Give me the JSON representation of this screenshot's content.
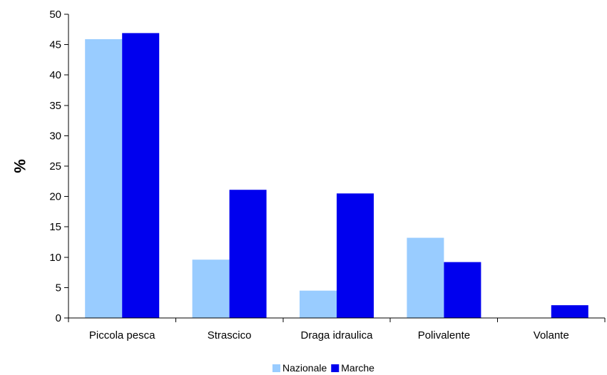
{
  "chart_data": {
    "type": "bar",
    "title": "",
    "xlabel": "",
    "ylabel": "%",
    "ylim": [
      0,
      50
    ],
    "yticks": [
      0,
      5,
      10,
      15,
      20,
      25,
      30,
      35,
      40,
      45,
      50
    ],
    "grid": false,
    "legend_position": "bottom",
    "categories": [
      "Piccola pesca",
      "Strascico",
      "Draga idraulica",
      "Polivalente",
      "Volante"
    ],
    "series": [
      {
        "name": "Nazionale",
        "color": "#99ccff",
        "values": [
          45.9,
          9.6,
          4.5,
          13.2,
          0
        ]
      },
      {
        "name": "Marche",
        "color": "#0000ee",
        "values": [
          46.9,
          21.1,
          20.5,
          9.2,
          2.1
        ]
      }
    ]
  }
}
